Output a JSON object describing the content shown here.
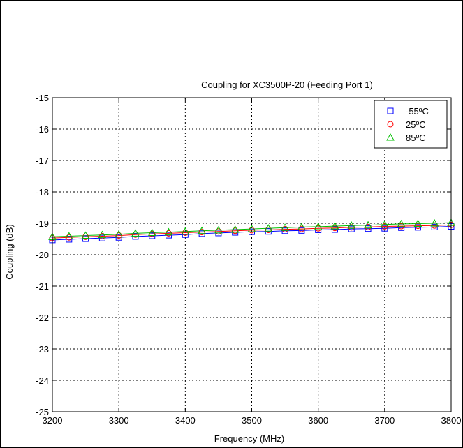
{
  "chart_data": {
    "type": "line",
    "title": "Coupling for XC3500P-20 (Feeding Port 1)",
    "xlabel": "Frequency (MHz)",
    "ylabel": "Coupling (dB)",
    "xlim": [
      3200,
      3800
    ],
    "ylim": [
      -25,
      -15
    ],
    "xticks": [
      3200,
      3300,
      3400,
      3500,
      3600,
      3700,
      3800
    ],
    "yticks": [
      -25,
      -24,
      -23,
      -22,
      -21,
      -20,
      -19,
      -18,
      -17,
      -16,
      -15
    ],
    "grid": true,
    "legend_position": "top-right",
    "x": [
      3200,
      3225,
      3250,
      3275,
      3300,
      3325,
      3350,
      3375,
      3400,
      3425,
      3450,
      3475,
      3500,
      3525,
      3550,
      3575,
      3600,
      3625,
      3650,
      3675,
      3700,
      3725,
      3750,
      3775,
      3800
    ],
    "series": [
      {
        "name": "-55ºC",
        "color": "#0000ff",
        "marker": "square",
        "values": [
          -19.53,
          -19.51,
          -19.49,
          -19.47,
          -19.45,
          -19.42,
          -19.4,
          -19.38,
          -19.36,
          -19.33,
          -19.31,
          -19.29,
          -19.27,
          -19.26,
          -19.24,
          -19.23,
          -19.21,
          -19.2,
          -19.18,
          -19.17,
          -19.16,
          -19.14,
          -19.13,
          -19.12,
          -19.1
        ]
      },
      {
        "name": "25ºC",
        "color": "#ff0000",
        "marker": "circle",
        "values": [
          -19.47,
          -19.45,
          -19.43,
          -19.41,
          -19.39,
          -19.36,
          -19.34,
          -19.32,
          -19.3,
          -19.28,
          -19.26,
          -19.24,
          -19.22,
          -19.21,
          -19.19,
          -19.18,
          -19.16,
          -19.15,
          -19.13,
          -19.12,
          -19.1,
          -19.09,
          -19.08,
          -19.07,
          -19.05
        ]
      },
      {
        "name": "85ºC",
        "color": "#00c000",
        "marker": "triangle",
        "values": [
          -19.43,
          -19.41,
          -19.39,
          -19.37,
          -19.35,
          -19.32,
          -19.3,
          -19.28,
          -19.26,
          -19.24,
          -19.22,
          -19.2,
          -19.18,
          -19.16,
          -19.14,
          -19.12,
          -19.11,
          -19.09,
          -19.07,
          -19.06,
          -19.04,
          -19.02,
          -19.01,
          -19.0,
          -18.98
        ]
      }
    ]
  }
}
